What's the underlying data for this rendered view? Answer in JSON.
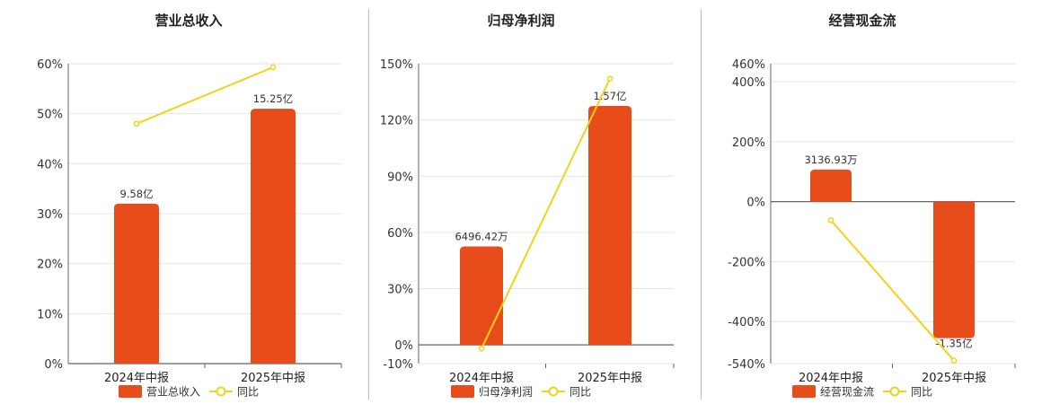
{
  "colors": {
    "bar": "#E84C1A",
    "line": "#F2D21B",
    "grid": "#e6e6e6",
    "axis": "#666666"
  },
  "chart_data": [
    {
      "type": "bar",
      "title": "营业总收入",
      "categories": [
        "2024年中报",
        "2025年中报"
      ],
      "series": [
        {
          "name": "营业总收入",
          "type": "bar",
          "values": [
            32,
            51
          ],
          "labels": [
            "9.58亿",
            "15.25亿"
          ]
        },
        {
          "name": "同比",
          "type": "line",
          "values": [
            48,
            59.3
          ]
        }
      ],
      "ylim": [
        0,
        60
      ],
      "yticks": [
        0,
        10,
        20,
        30,
        40,
        50,
        60
      ],
      "ytick_labels": [
        "0%",
        "10%",
        "20%",
        "30%",
        "40%",
        "50%",
        "60%"
      ],
      "grid": true,
      "legend": "bottom"
    },
    {
      "type": "bar",
      "title": "归母净利润",
      "categories": [
        "2024年中报",
        "2025年中报"
      ],
      "series": [
        {
          "name": "归母净利润",
          "type": "bar",
          "values": [
            52.5,
            127.5
          ],
          "labels": [
            "6496.42万",
            "1.57亿"
          ]
        },
        {
          "name": "同比",
          "type": "line",
          "values": [
            -2,
            142
          ]
        }
      ],
      "ylim": [
        -10,
        150
      ],
      "yticks": [
        -10,
        0,
        30,
        60,
        90,
        120,
        150
      ],
      "ytick_labels": [
        "-10%",
        "0%",
        "30%",
        "60%",
        "90%",
        "120%",
        "150%"
      ],
      "grid": true,
      "legend": "bottom"
    },
    {
      "type": "bar",
      "title": "经营现金流",
      "categories": [
        "2024年中报",
        "2025年中报"
      ],
      "series": [
        {
          "name": "经营现金流",
          "type": "bar",
          "values": [
            107,
            -455
          ],
          "labels": [
            "3136.93万",
            "-1.35亿"
          ]
        },
        {
          "name": "同比",
          "type": "line",
          "values": [
            -62,
            -530
          ]
        }
      ],
      "ylim": [
        -540,
        460
      ],
      "yticks": [
        -540,
        -400,
        -200,
        0,
        200,
        400,
        460
      ],
      "ytick_labels": [
        "-540%",
        "-400%",
        "-200%",
        "0%",
        "200%",
        "400%",
        "460%"
      ],
      "grid": true,
      "legend": "bottom"
    }
  ]
}
